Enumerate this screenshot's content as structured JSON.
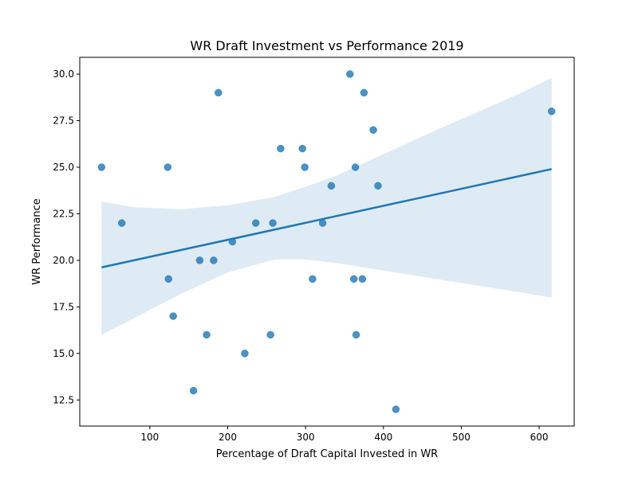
{
  "chart_data": {
    "type": "scatter",
    "title": "WR Draft Investment vs Performance 2019",
    "xlabel": "Percentage of Draft Capital Invested in WR",
    "ylabel": "WR Performance",
    "xlim": [
      10,
      645
    ],
    "ylim": [
      11.1,
      30.9
    ],
    "xticks": [
      100,
      200,
      300,
      400,
      500,
      600
    ],
    "xtick_labels": [
      "100",
      "200",
      "300",
      "400",
      "500",
      "600"
    ],
    "yticks": [
      12.5,
      15.0,
      17.5,
      20.0,
      22.5,
      25.0,
      27.5,
      30.0
    ],
    "ytick_labels": [
      "12.5",
      "15.0",
      "17.5",
      "20.0",
      "22.5",
      "25.0",
      "27.5",
      "30.0"
    ],
    "grid": false,
    "colors": {
      "points": "#1f77b4",
      "line": "#1f77b4",
      "band": "#1f77b4"
    },
    "points": [
      {
        "x": 38,
        "y": 25
      },
      {
        "x": 64,
        "y": 22
      },
      {
        "x": 123,
        "y": 25
      },
      {
        "x": 124,
        "y": 19
      },
      {
        "x": 130,
        "y": 17
      },
      {
        "x": 156,
        "y": 13
      },
      {
        "x": 164,
        "y": 20
      },
      {
        "x": 173,
        "y": 16
      },
      {
        "x": 182,
        "y": 20
      },
      {
        "x": 188,
        "y": 29
      },
      {
        "x": 206,
        "y": 21
      },
      {
        "x": 222,
        "y": 15
      },
      {
        "x": 236,
        "y": 22
      },
      {
        "x": 255,
        "y": 16
      },
      {
        "x": 258,
        "y": 22
      },
      {
        "x": 268,
        "y": 26
      },
      {
        "x": 296,
        "y": 26
      },
      {
        "x": 299,
        "y": 25
      },
      {
        "x": 309,
        "y": 19
      },
      {
        "x": 322,
        "y": 22
      },
      {
        "x": 333,
        "y": 24
      },
      {
        "x": 357,
        "y": 30
      },
      {
        "x": 362,
        "y": 19
      },
      {
        "x": 364,
        "y": 25
      },
      {
        "x": 365,
        "y": 16
      },
      {
        "x": 373,
        "y": 19
      },
      {
        "x": 375,
        "y": 29
      },
      {
        "x": 387,
        "y": 27
      },
      {
        "x": 393,
        "y": 24
      },
      {
        "x": 416,
        "y": 12
      },
      {
        "x": 616,
        "y": 28
      }
    ],
    "regression": {
      "x": [
        38,
        616
      ],
      "y": [
        19.62,
        24.9
      ]
    },
    "confidence_band": {
      "x": [
        38,
        80,
        140,
        200,
        260,
        300,
        340,
        400,
        460,
        520,
        580,
        616
      ],
      "upper": [
        23.15,
        22.85,
        22.75,
        22.95,
        23.4,
        23.95,
        24.55,
        25.7,
        26.85,
        27.95,
        29.05,
        29.8
      ],
      "lower": [
        16.0,
        16.9,
        18.2,
        19.35,
        20.05,
        20.05,
        19.85,
        19.45,
        19.05,
        18.65,
        18.25,
        18.0
      ]
    }
  }
}
